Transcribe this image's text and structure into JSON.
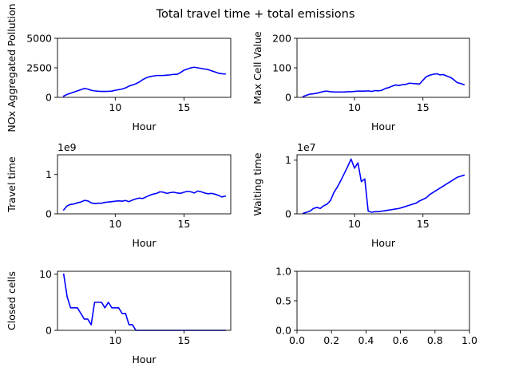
{
  "figure": {
    "suptitle": "Total travel time + total emissions",
    "line_color": "#0000ff"
  },
  "chart_data": [
    {
      "type": "line",
      "xlabel": "Hour",
      "ylabel": "NOx Aggregated Pollution",
      "xlim": [
        5.8,
        18.4
      ],
      "ylim": [
        0,
        5000
      ],
      "xticks": [
        10,
        15
      ],
      "yticks": [
        0,
        2500,
        5000
      ],
      "offset_label": "",
      "series": [
        {
          "x": [
            6.25,
            6.5,
            6.75,
            7,
            7.25,
            7.5,
            7.75,
            8,
            8.25,
            8.5,
            8.75,
            9,
            9.25,
            9.5,
            9.75,
            10,
            10.25,
            10.5,
            10.75,
            11,
            11.25,
            11.5,
            11.75,
            12,
            12.25,
            12.5,
            12.75,
            13,
            13.25,
            13.5,
            13.75,
            14,
            14.25,
            14.5,
            14.75,
            15,
            15.25,
            15.5,
            15.75,
            16,
            16.25,
            16.5,
            16.75,
            17,
            17.25,
            17.5,
            17.75,
            18
          ],
          "y": [
            100,
            250,
            350,
            450,
            550,
            650,
            750,
            700,
            600,
            550,
            520,
            500,
            500,
            510,
            530,
            600,
            650,
            700,
            800,
            950,
            1050,
            1150,
            1300,
            1500,
            1650,
            1750,
            1800,
            1850,
            1850,
            1850,
            1880,
            1900,
            1950,
            1950,
            2100,
            2300,
            2400,
            2500,
            2550,
            2500,
            2450,
            2400,
            2350,
            2250,
            2150,
            2050,
            2000,
            1980
          ]
        }
      ]
    },
    {
      "type": "line",
      "xlabel": "Hour",
      "ylabel": "Max Cell Value",
      "xlim": [
        5.8,
        18.4
      ],
      "ylim": [
        0,
        200
      ],
      "xticks": [
        10,
        15
      ],
      "yticks": [
        0,
        100,
        200
      ],
      "offset_label": "",
      "series": [
        {
          "x": [
            6.25,
            6.5,
            6.75,
            7,
            7.25,
            7.5,
            7.75,
            8,
            8.25,
            8.5,
            8.75,
            9,
            9.25,
            9.5,
            9.75,
            10,
            10.25,
            10.5,
            10.75,
            11,
            11.25,
            11.5,
            11.75,
            12,
            12.25,
            12.5,
            12.75,
            13,
            13.25,
            13.5,
            13.75,
            14,
            14.25,
            14.5,
            14.75,
            15,
            15.25,
            15.5,
            15.75,
            16,
            16.25,
            16.5,
            16.75,
            17,
            17.25,
            17.5,
            17.75,
            18
          ],
          "y": [
            3,
            7,
            11,
            12,
            14,
            17,
            20,
            21,
            19,
            18,
            18,
            18,
            18,
            19,
            19,
            20,
            21,
            21,
            21,
            22,
            20,
            23,
            22,
            24,
            30,
            33,
            38,
            42,
            40,
            43,
            44,
            48,
            47,
            46,
            45,
            58,
            70,
            75,
            78,
            80,
            76,
            77,
            72,
            68,
            60,
            50,
            47,
            43
          ]
        }
      ]
    },
    {
      "type": "line",
      "xlabel": "Hour",
      "ylabel": "Travel time",
      "xlim": [
        5.8,
        18.4
      ],
      "ylim": [
        0,
        1.5
      ],
      "xticks": [
        10,
        15
      ],
      "yticks": [
        0,
        1
      ],
      "offset_label": "1e9",
      "series": [
        {
          "x": [
            6.25,
            6.5,
            6.75,
            7,
            7.25,
            7.5,
            7.75,
            8,
            8.25,
            8.5,
            8.75,
            9,
            9.25,
            9.5,
            9.75,
            10,
            10.25,
            10.5,
            10.75,
            11,
            11.25,
            11.5,
            11.75,
            12,
            12.25,
            12.5,
            12.75,
            13,
            13.25,
            13.5,
            13.75,
            14,
            14.25,
            14.5,
            14.75,
            15,
            15.25,
            15.5,
            15.75,
            16,
            16.25,
            16.5,
            16.75,
            17,
            17.25,
            17.5,
            17.75,
            18
          ],
          "y": [
            0.1,
            0.2,
            0.24,
            0.25,
            0.28,
            0.3,
            0.34,
            0.33,
            0.28,
            0.26,
            0.27,
            0.27,
            0.29,
            0.3,
            0.31,
            0.32,
            0.33,
            0.32,
            0.34,
            0.31,
            0.35,
            0.38,
            0.4,
            0.39,
            0.43,
            0.47,
            0.5,
            0.52,
            0.56,
            0.55,
            0.52,
            0.54,
            0.55,
            0.53,
            0.52,
            0.55,
            0.57,
            0.56,
            0.53,
            0.58,
            0.56,
            0.53,
            0.51,
            0.52,
            0.5,
            0.47,
            0.43,
            0.45
          ]
        }
      ]
    },
    {
      "type": "line",
      "xlabel": "Hour",
      "ylabel": "Waiting time",
      "xlim": [
        5.8,
        18.4
      ],
      "ylim": [
        0,
        1.1
      ],
      "xticks": [
        10,
        15
      ],
      "yticks": [
        0,
        1
      ],
      "offset_label": "1e7",
      "series": [
        {
          "x": [
            6.25,
            6.5,
            6.75,
            7,
            7.25,
            7.5,
            7.75,
            8,
            8.25,
            8.5,
            8.75,
            9,
            9.25,
            9.5,
            9.75,
            10,
            10.25,
            10.5,
            10.75,
            11,
            11.25,
            11.5,
            11.75,
            12,
            12.25,
            12.5,
            12.75,
            13,
            13.25,
            13.5,
            13.75,
            14,
            14.25,
            14.5,
            14.75,
            15,
            15.25,
            15.5,
            15.75,
            16,
            16.25,
            16.5,
            16.75,
            17,
            17.25,
            17.5,
            17.75,
            18
          ],
          "y": [
            0.01,
            0.03,
            0.05,
            0.1,
            0.12,
            0.1,
            0.15,
            0.18,
            0.25,
            0.4,
            0.5,
            0.62,
            0.75,
            0.88,
            1.02,
            0.85,
            0.95,
            0.6,
            0.65,
            0.05,
            0.03,
            0.04,
            0.04,
            0.05,
            0.06,
            0.07,
            0.08,
            0.09,
            0.1,
            0.12,
            0.14,
            0.16,
            0.18,
            0.2,
            0.24,
            0.27,
            0.3,
            0.36,
            0.4,
            0.44,
            0.48,
            0.52,
            0.56,
            0.6,
            0.64,
            0.68,
            0.7,
            0.72
          ]
        }
      ]
    },
    {
      "type": "line",
      "xlabel": "Hour",
      "ylabel": "Closed cells",
      "xlim": [
        5.8,
        18.4
      ],
      "ylim": [
        0,
        10.5
      ],
      "xticks": [
        10,
        15
      ],
      "yticks": [
        0,
        10
      ],
      "offset_label": "",
      "series": [
        {
          "x": [
            6.25,
            6.5,
            6.75,
            7,
            7.25,
            7.5,
            7.75,
            8,
            8.25,
            8.5,
            8.75,
            9,
            9.25,
            9.5,
            9.75,
            10,
            10.25,
            10.5,
            10.75,
            11,
            11.25,
            11.5,
            11.75,
            12,
            12.5,
            13,
            13.5,
            14,
            14.5,
            15,
            15.5,
            16,
            16.5,
            17,
            17.5,
            18
          ],
          "y": [
            10,
            6,
            4,
            4,
            4,
            3,
            2,
            2,
            1,
            5,
            5,
            5,
            4,
            5,
            4,
            4,
            4,
            3,
            3,
            1,
            1,
            0,
            0,
            0,
            0,
            0,
            0,
            0,
            0,
            0,
            0,
            0,
            0,
            0,
            0,
            0
          ]
        }
      ]
    },
    {
      "type": "line",
      "xlabel": "",
      "ylabel": "",
      "xlim": [
        0,
        1
      ],
      "ylim": [
        0,
        1
      ],
      "xticks": [
        0,
        0.2,
        0.4,
        0.6,
        0.8,
        1.0
      ],
      "yticks": [
        0,
        0.5,
        1.0
      ],
      "xtick_labels": [
        "0.0",
        "0.2",
        "0.4",
        "0.6",
        "0.8",
        "1.0"
      ],
      "ytick_labels": [
        "0.0",
        "0.5",
        "1.0"
      ],
      "offset_label": "",
      "series": []
    }
  ]
}
